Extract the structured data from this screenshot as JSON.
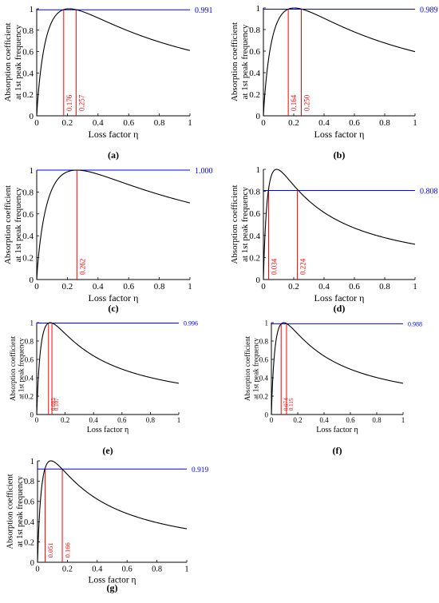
{
  "chart_data": [
    {
      "panel": "(a)",
      "type": "line",
      "xlabel": "Loss factor η",
      "ylabel": [
        "Absorption coefficient",
        "at 1st peak frequency"
      ],
      "xlim": [
        0,
        1
      ],
      "ylim": [
        0,
        1
      ],
      "xticks": [
        "0",
        "0.2",
        "0.4",
        "0.6",
        "0.8",
        "1"
      ],
      "yticks": [
        "0",
        "0.2",
        "0.4",
        "0.6",
        "0.8",
        "1"
      ],
      "peak_eta": 0.212,
      "end_value": 0.61,
      "hline": {
        "value": 0.991,
        "label": "0.991"
      },
      "vlines": [
        {
          "x": 0.176,
          "label": "0.176"
        },
        {
          "x": 0.257,
          "label": "0.257"
        }
      ]
    },
    {
      "panel": "(b)",
      "type": "line",
      "xlabel": "Loss factor η",
      "ylabel": [
        "Absorption coefficient",
        "at 1st peak frequency"
      ],
      "xlim": [
        0,
        1
      ],
      "ylim": [
        0,
        1
      ],
      "xticks": [
        "0",
        "0.2",
        "0.4",
        "0.6",
        "0.8",
        "1"
      ],
      "yticks": [
        "0",
        "0.2",
        "0.4",
        "0.6",
        "0.8",
        "1"
      ],
      "peak_eta": 0.204,
      "end_value": 0.595,
      "hline": {
        "value": 0.989,
        "label": "0.989"
      },
      "vlines": [
        {
          "x": 0.164,
          "label": "0.164"
        },
        {
          "x": 0.25,
          "label": "0.250"
        }
      ]
    },
    {
      "panel": "(c)",
      "type": "line",
      "xlabel": "Loss factor η",
      "ylabel": [
        "Absorption coefficient",
        "at 1st peak frequency"
      ],
      "xlim": [
        0,
        1
      ],
      "ylim": [
        0,
        1
      ],
      "xticks": [
        "0",
        "0.2",
        "0.4",
        "0.6",
        "0.8",
        "1"
      ],
      "yticks": [
        "0",
        "0.2",
        "0.4",
        "0.6",
        "0.8",
        "1"
      ],
      "peak_eta": 0.262,
      "end_value": 0.7,
      "hline": {
        "value": 1.0,
        "label": "1.000"
      },
      "vlines": [
        {
          "x": 0.262,
          "label": "0.262"
        }
      ]
    },
    {
      "panel": "(d)",
      "type": "line",
      "xlabel": "Loss factor η",
      "ylabel": [
        "Absorption coefficient",
        "at 1st peak frequency"
      ],
      "xlim": [
        0,
        1
      ],
      "ylim": [
        0,
        1
      ],
      "xticks": [
        "0",
        "0.2",
        "0.4",
        "0.6",
        "0.8",
        "1"
      ],
      "yticks": [
        "0",
        "0.2",
        "0.4",
        "0.6",
        "0.8",
        "1"
      ],
      "peak_eta": 0.087,
      "end_value": 0.32,
      "hline": {
        "value": 0.808,
        "label": "0.808"
      },
      "vlines": [
        {
          "x": 0.034,
          "label": "0.034"
        },
        {
          "x": 0.224,
          "label": "0.224"
        }
      ]
    },
    {
      "panel": "(e)",
      "type": "line",
      "xlabel": "Loss factor η",
      "ylabel": [
        "Absorption coefficient",
        "at 1st peak frequency"
      ],
      "xlim": [
        0,
        1
      ],
      "ylim": [
        0,
        1
      ],
      "xticks": [
        "0",
        "0.2",
        "0.4",
        "0.6",
        "0.8",
        "1"
      ],
      "yticks": [
        "0",
        "0.2",
        "0.4",
        "0.6",
        "0.8",
        "1"
      ],
      "peak_eta": 0.095,
      "end_value": 0.34,
      "hline": {
        "value": 0.996,
        "label": "0.996"
      },
      "vlines": [
        {
          "x": 0.083,
          "label": "0.083"
        },
        {
          "x": 0.107,
          "label": "0.107"
        }
      ]
    },
    {
      "panel": "(f)",
      "type": "line",
      "xlabel": "Loss factor η",
      "ylabel": [
        "Absorption coefficient",
        "at 1st peak frequency"
      ],
      "xlim": [
        0,
        1
      ],
      "ylim": [
        0,
        1
      ],
      "xticks": [
        "0",
        "0.2",
        "0.4",
        "0.6",
        "0.8",
        "1"
      ],
      "yticks": [
        "0",
        "0.2",
        "0.4",
        "0.6",
        "0.8",
        "1"
      ],
      "peak_eta": 0.094,
      "end_value": 0.34,
      "hline": {
        "value": 0.988,
        "label": "0.988"
      },
      "vlines": [
        {
          "x": 0.074,
          "label": "0.074"
        },
        {
          "x": 0.115,
          "label": "0.115"
        }
      ]
    },
    {
      "panel": "(g)",
      "type": "line",
      "xlabel": "Loss factor η",
      "ylabel": [
        "Absorption coefficient",
        "at 1st peak frequency"
      ],
      "xlim": [
        0,
        1
      ],
      "ylim": [
        0,
        1
      ],
      "xticks": [
        "0",
        "0.2",
        "0.4",
        "0.6",
        "0.8",
        "1"
      ],
      "yticks": [
        "0",
        "0.2",
        "0.4",
        "0.6",
        "0.8",
        "1"
      ],
      "peak_eta": 0.09,
      "end_value": 0.33,
      "hline": {
        "value": 0.919,
        "label": "0.919"
      },
      "vlines": [
        {
          "x": 0.051,
          "label": "0.051"
        },
        {
          "x": 0.166,
          "label": "0.166"
        }
      ]
    }
  ],
  "colors": {
    "curve": "#000000",
    "hline": "#0000ff",
    "vline": "#ff0000"
  }
}
